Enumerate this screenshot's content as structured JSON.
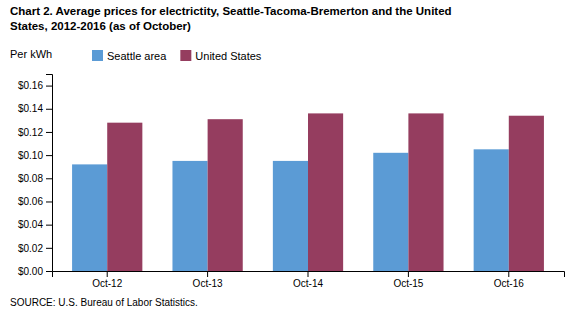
{
  "chart_data": {
    "type": "bar",
    "title": "Chart 2. Average prices for electrictity, Seattle-Tacoma-Bremerton and the United",
    "subtitle": "States, 2012-2016  (as of October)",
    "ylabel": "Per kWh",
    "source": "SOURCE: U.S. Bureau of Labor Statistics.",
    "categories": [
      "Oct-12",
      "Oct-13",
      "Oct-14",
      "Oct-15",
      "Oct-16"
    ],
    "series": [
      {
        "name": "Seattle area",
        "color": "#5B9BD5",
        "values": [
          0.092,
          0.095,
          0.095,
          0.102,
          0.105
        ]
      },
      {
        "name": "United States",
        "color": "#953D5F",
        "values": [
          0.128,
          0.131,
          0.136,
          0.136,
          0.134
        ]
      }
    ],
    "ylim": [
      0,
      0.17
    ],
    "yticks": [
      {
        "value": 0.0,
        "label": "$0.00"
      },
      {
        "value": 0.02,
        "label": "$0.02"
      },
      {
        "value": 0.04,
        "label": "$0.04"
      },
      {
        "value": 0.06,
        "label": "$0.06"
      },
      {
        "value": 0.08,
        "label": "$0.08"
      },
      {
        "value": 0.1,
        "label": "$0.10"
      },
      {
        "value": 0.12,
        "label": "$0.12"
      },
      {
        "value": 0.14,
        "label": "$0.14"
      },
      {
        "value": 0.16,
        "label": "$0.16"
      }
    ],
    "grid": false,
    "legend": "upper left"
  }
}
